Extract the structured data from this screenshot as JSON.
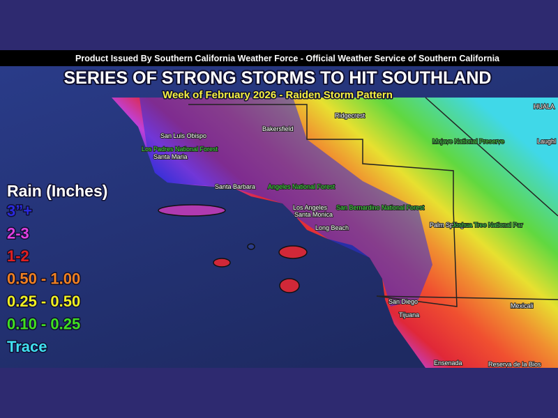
{
  "banner": "Product Issued By Southern California Weather Force - Official Weather Service of Southern California",
  "title": "SERIES OF STRONG STORMS TO HIT SOUTHLAND",
  "subtitle": "Week of February 2026 - Raiden Storm Pattern",
  "legend": {
    "title": "Rain (Inches)",
    "items": [
      {
        "label": "3”+",
        "color": "#2a2ae0"
      },
      {
        "label": "2-3",
        "color": "#e040e0"
      },
      {
        "label": "1-2",
        "color": "#e02020"
      },
      {
        "label": "0.50 - 1.00",
        "color": "#f08020"
      },
      {
        "label": "0.25 - 0.50",
        "color": "#f0f020"
      },
      {
        "label": "0.10 - 0.25",
        "color": "#40e020"
      },
      {
        "label": "Trace",
        "color": "#40e0f0"
      }
    ]
  },
  "map_labels": [
    "Ridgecrest",
    "Bakersfield",
    "San Luis Obispo",
    "Los Padres National Forest",
    "Santa Maria",
    "Santa Barbara",
    "Angeles National Forest",
    "Los Angeles",
    "San Bernardino National Forest",
    "Santa Monica",
    "Long Beach",
    "Palm Springs",
    "Joshua Tree National Par",
    "Mojave National Preserve",
    "Laughl",
    "HUALA",
    "San Diego",
    "Tijuana",
    "Mexicali",
    "Ensenada",
    "Reserva de la Bios"
  ]
}
